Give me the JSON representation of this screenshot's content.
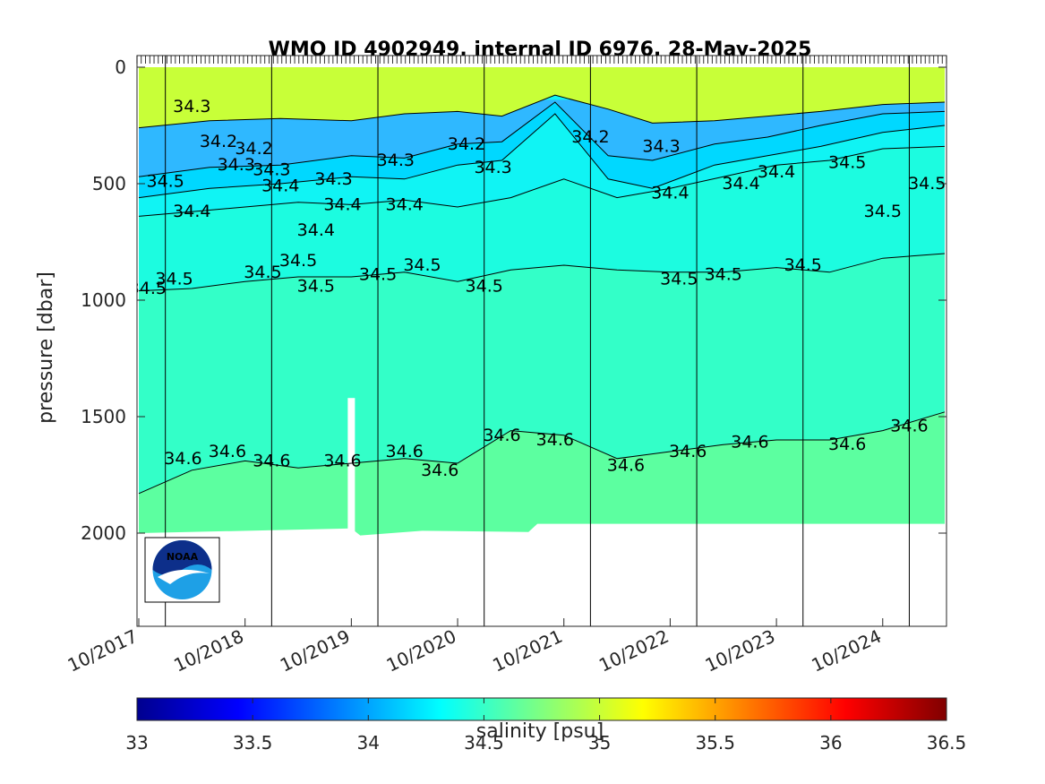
{
  "chart_data": {
    "type": "heatmap",
    "title": "WMO ID 4902949, internal ID 6976, 28-May-2025",
    "xlabel": "",
    "ylabel": "pressure [dbar]",
    "colorbar_label": "salinity [psu]",
    "x_range": [
      "2017-10",
      "2025-05"
    ],
    "ylim": [
      0,
      2400
    ],
    "y_reversed": true,
    "y_ticks": [
      0,
      500,
      1000,
      1500,
      2000
    ],
    "x_tick_labels": [
      "10/2017",
      "10/2018",
      "10/2019",
      "10/2020",
      "10/2021",
      "10/2022",
      "10/2023",
      "10/2024"
    ],
    "year_markers": [
      "2018-01",
      "2019-01",
      "2020-01",
      "2021-01",
      "2022-01",
      "2023-01",
      "2024-01",
      "2025-01"
    ],
    "colorbar_ticks": [
      33,
      33.5,
      34,
      34.5,
      35,
      35.5,
      36,
      36.5
    ],
    "colorbar_range": [
      33,
      36.5
    ],
    "colormap": "jet",
    "colors": {
      "low": "#00008f",
      "mid_low": "#0080ff",
      "mid": "#00ffff",
      "mid_high": "#ffff00",
      "high": "#800000",
      "band_34_2_34_3": "#00d8ff",
      "band_34_3_34_4": "#10f4f4",
      "band_34_4_34_5": "#1cfce0",
      "band_34_5_34_6": "#33ffc8",
      "band_34_6_34_7": "#5cffa0",
      "surface_fresh": "#2fb8ff",
      "surface_salty": "#c8ff38"
    },
    "contour_levels": [
      34.1,
      34.2,
      34.3,
      34.4,
      34.5,
      34.6
    ],
    "contour_depths": [
      {
        "level": 34.4,
        "x": [
          "2017-10",
          "2018-04",
          "2018-10",
          "2019-04",
          "2019-10",
          "2020-04",
          "2020-10",
          "2021-04",
          "2021-10",
          "2022-04",
          "2022-10",
          "2023-04",
          "2023-10",
          "2024-04",
          "2024-10",
          "2025-05"
        ],
        "y": [
          640,
          620,
          600,
          580,
          590,
          570,
          600,
          560,
          480,
          560,
          520,
          470,
          420,
          400,
          350,
          340
        ]
      },
      {
        "level": 34.5,
        "x": [
          "2017-10",
          "2018-04",
          "2018-10",
          "2019-04",
          "2019-10",
          "2020-04",
          "2020-10",
          "2021-04",
          "2021-10",
          "2022-04",
          "2022-10",
          "2023-04",
          "2023-10",
          "2024-04",
          "2024-10",
          "2025-05"
        ],
        "y": [
          960,
          950,
          920,
          900,
          900,
          880,
          920,
          870,
          850,
          870,
          880,
          880,
          860,
          880,
          820,
          800
        ]
      },
      {
        "level": 34.6,
        "x": [
          "2017-10",
          "2018-04",
          "2018-10",
          "2019-04",
          "2019-10",
          "2020-04",
          "2020-10",
          "2021-04",
          "2021-10",
          "2022-04",
          "2022-10",
          "2023-04",
          "2023-10",
          "2024-04",
          "2024-10",
          "2025-05"
        ],
        "y": [
          1830,
          1730,
          1690,
          1720,
          1700,
          1680,
          1700,
          1560,
          1580,
          1680,
          1650,
          1620,
          1600,
          1600,
          1560,
          1480
        ]
      }
    ],
    "bottom_depth": {
      "x": [
        "2017-10",
        "2019-10",
        "2019-11",
        "2020-06",
        "2021-06",
        "2021-07",
        "2025-05"
      ],
      "y": [
        2000,
        1980,
        2010,
        1990,
        1995,
        1960,
        1960
      ]
    },
    "contour_labels": [
      {
        "text": "34.5",
        "date": "2018-01",
        "p": 490
      },
      {
        "text": "34.3",
        "date": "2018-04",
        "p": 170
      },
      {
        "text": "34.4",
        "date": "2018-04",
        "p": 620
      },
      {
        "text": "34.5",
        "date": "2017-11",
        "p": 950
      },
      {
        "text": "34.5",
        "date": "2018-02",
        "p": 910
      },
      {
        "text": "34.2",
        "date": "2018-07",
        "p": 320
      },
      {
        "text": "34.3",
        "date": "2018-09",
        "p": 420
      },
      {
        "text": "34.5",
        "date": "2018-12",
        "p": 880
      },
      {
        "text": "34.6",
        "date": "2018-03",
        "p": 1680
      },
      {
        "text": "34.6",
        "date": "2018-08",
        "p": 1650
      },
      {
        "text": "34.2",
        "date": "2018-11",
        "p": 350
      },
      {
        "text": "34.3",
        "date": "2019-01",
        "p": 440
      },
      {
        "text": "34.4",
        "date": "2019-02",
        "p": 510
      },
      {
        "text": "34.5",
        "date": "2019-04",
        "p": 830
      },
      {
        "text": "34.6",
        "date": "2019-01",
        "p": 1690
      },
      {
        "text": "34.4",
        "date": "2019-06",
        "p": 700
      },
      {
        "text": "34.5",
        "date": "2019-06",
        "p": 940
      },
      {
        "text": "34.3",
        "date": "2019-08",
        "p": 480
      },
      {
        "text": "34.4",
        "date": "2019-09",
        "p": 590
      },
      {
        "text": "34.6",
        "date": "2019-09",
        "p": 1690
      },
      {
        "text": "34.5",
        "date": "2020-01",
        "p": 890
      },
      {
        "text": "34.3",
        "date": "2020-03",
        "p": 400
      },
      {
        "text": "34.4",
        "date": "2020-04",
        "p": 590
      },
      {
        "text": "34.5",
        "date": "2020-06",
        "p": 850
      },
      {
        "text": "34.6",
        "date": "2020-04",
        "p": 1650
      },
      {
        "text": "34.6",
        "date": "2020-08",
        "p": 1730
      },
      {
        "text": "34.2",
        "date": "2020-11",
        "p": 330
      },
      {
        "text": "34.3",
        "date": "2021-02",
        "p": 430
      },
      {
        "text": "34.5",
        "date": "2021-01",
        "p": 940
      },
      {
        "text": "34.6",
        "date": "2021-03",
        "p": 1580
      },
      {
        "text": "34.6",
        "date": "2021-09",
        "p": 1600
      },
      {
        "text": "34.2",
        "date": "2022-01",
        "p": 300
      },
      {
        "text": "34.6",
        "date": "2022-05",
        "p": 1710
      },
      {
        "text": "34.3",
        "date": "2022-09",
        "p": 340
      },
      {
        "text": "34.4",
        "date": "2022-10",
        "p": 540
      },
      {
        "text": "34.5",
        "date": "2022-11",
        "p": 910
      },
      {
        "text": "34.6",
        "date": "2022-12",
        "p": 1650
      },
      {
        "text": "34.5",
        "date": "2023-04",
        "p": 890
      },
      {
        "text": "34.4",
        "date": "2023-06",
        "p": 500
      },
      {
        "text": "34.6",
        "date": "2023-07",
        "p": 1610
      },
      {
        "text": "34.4",
        "date": "2023-10",
        "p": 450
      },
      {
        "text": "34.5",
        "date": "2024-01",
        "p": 850
      },
      {
        "text": "34.5",
        "date": "2024-06",
        "p": 410
      },
      {
        "text": "34.6",
        "date": "2024-06",
        "p": 1620
      },
      {
        "text": "34.5",
        "date": "2024-10",
        "p": 620
      },
      {
        "text": "34.5",
        "date": "2025-03",
        "p": 500
      },
      {
        "text": "34.6",
        "date": "2025-01",
        "p": 1540
      }
    ]
  }
}
